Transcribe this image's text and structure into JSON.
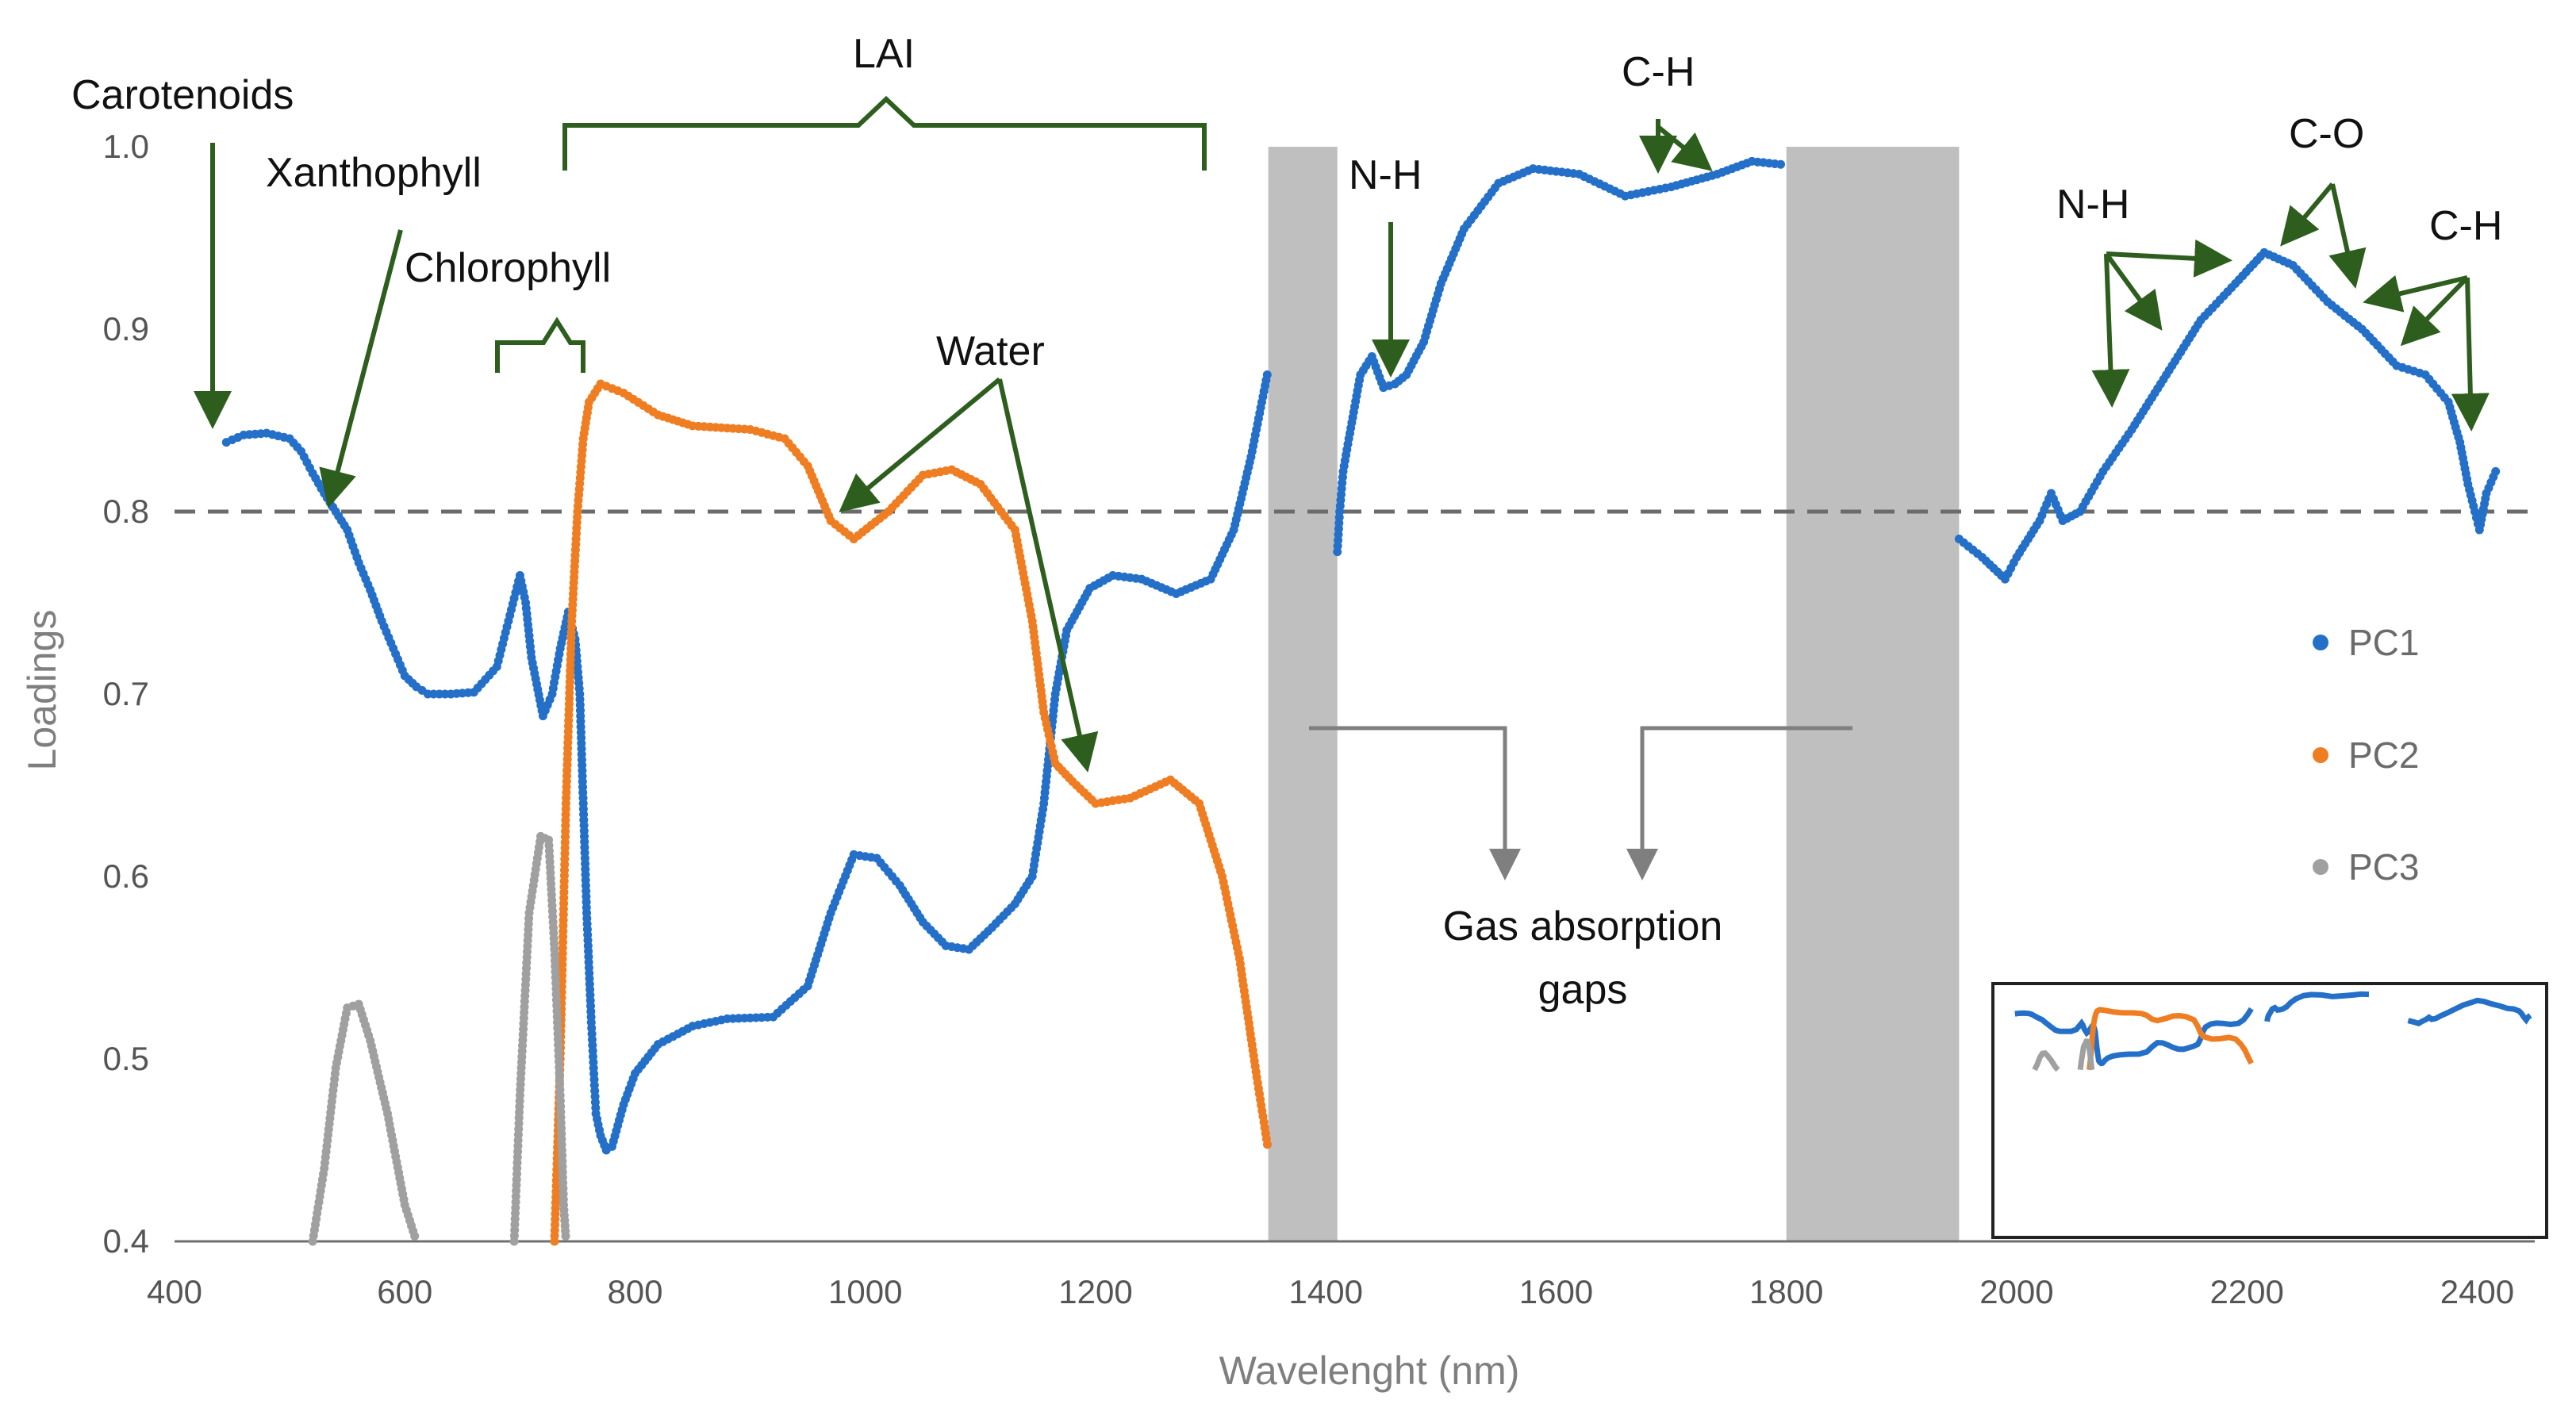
{
  "chart_data": {
    "type": "scatter",
    "title": "",
    "xlabel": "Wavelenght (nm)",
    "ylabel": "Loadings",
    "xlim": [
      400,
      2450
    ],
    "ylim": [
      0.4,
      1.0
    ],
    "xticks": [
      "400",
      "600",
      "800",
      "1000",
      "1200",
      "1400",
      "1600",
      "1800",
      "2000",
      "2200",
      "2400"
    ],
    "yticks": [
      "0.4",
      "0.5",
      "0.6",
      "0.7",
      "0.8",
      "0.9",
      "1.0"
    ],
    "reference_line": 0.8,
    "gas_absorption_gaps": [
      [
        1350,
        1410
      ],
      [
        1800,
        1950
      ]
    ],
    "legend": [
      "PC1",
      "PC2",
      "PC3"
    ],
    "series": [
      {
        "name": "PC1",
        "color": "#2470c8",
        "points": [
          [
            445,
            0.838
          ],
          [
            460,
            0.842
          ],
          [
            480,
            0.843
          ],
          [
            500,
            0.84
          ],
          [
            510,
            0.833
          ],
          [
            520,
            0.821
          ],
          [
            530,
            0.81
          ],
          [
            540,
            0.8
          ],
          [
            550,
            0.79
          ],
          [
            560,
            0.772
          ],
          [
            570,
            0.757
          ],
          [
            580,
            0.74
          ],
          [
            590,
            0.725
          ],
          [
            600,
            0.71
          ],
          [
            610,
            0.704
          ],
          [
            620,
            0.7
          ],
          [
            640,
            0.7
          ],
          [
            660,
            0.701
          ],
          [
            680,
            0.715
          ],
          [
            690,
            0.74
          ],
          [
            700,
            0.765
          ],
          [
            705,
            0.75
          ],
          [
            710,
            0.72
          ],
          [
            720,
            0.688
          ],
          [
            728,
            0.7
          ],
          [
            735,
            0.725
          ],
          [
            742,
            0.745
          ],
          [
            748,
            0.73
          ],
          [
            752,
            0.7
          ],
          [
            755,
            0.64
          ],
          [
            758,
            0.58
          ],
          [
            762,
            0.52
          ],
          [
            766,
            0.47
          ],
          [
            770,
            0.458
          ],
          [
            775,
            0.45
          ],
          [
            780,
            0.452
          ],
          [
            790,
            0.475
          ],
          [
            800,
            0.492
          ],
          [
            820,
            0.508
          ],
          [
            850,
            0.518
          ],
          [
            880,
            0.522
          ],
          [
            920,
            0.523
          ],
          [
            950,
            0.54
          ],
          [
            970,
            0.58
          ],
          [
            990,
            0.612
          ],
          [
            1010,
            0.61
          ],
          [
            1030,
            0.595
          ],
          [
            1050,
            0.575
          ],
          [
            1070,
            0.562
          ],
          [
            1090,
            0.56
          ],
          [
            1110,
            0.572
          ],
          [
            1130,
            0.585
          ],
          [
            1145,
            0.6
          ],
          [
            1155,
            0.64
          ],
          [
            1165,
            0.7
          ],
          [
            1175,
            0.735
          ],
          [
            1195,
            0.758
          ],
          [
            1215,
            0.765
          ],
          [
            1240,
            0.763
          ],
          [
            1270,
            0.755
          ],
          [
            1300,
            0.763
          ],
          [
            1320,
            0.79
          ],
          [
            1335,
            0.83
          ],
          [
            1350,
            0.878
          ],
          [
            1410,
            0.778
          ],
          [
            1412,
            0.8
          ],
          [
            1415,
            0.822
          ],
          [
            1420,
            0.84
          ],
          [
            1430,
            0.875
          ],
          [
            1440,
            0.885
          ],
          [
            1450,
            0.868
          ],
          [
            1460,
            0.87
          ],
          [
            1470,
            0.875
          ],
          [
            1485,
            0.893
          ],
          [
            1500,
            0.925
          ],
          [
            1520,
            0.955
          ],
          [
            1550,
            0.98
          ],
          [
            1580,
            0.988
          ],
          [
            1620,
            0.985
          ],
          [
            1660,
            0.973
          ],
          [
            1700,
            0.978
          ],
          [
            1740,
            0.985
          ],
          [
            1770,
            0.992
          ],
          [
            1800,
            0.99
          ],
          [
            1950,
            0.785
          ],
          [
            1970,
            0.775
          ],
          [
            1990,
            0.763
          ],
          [
            2000,
            0.775
          ],
          [
            2020,
            0.795
          ],
          [
            2030,
            0.81
          ],
          [
            2040,
            0.795
          ],
          [
            2055,
            0.8
          ],
          [
            2075,
            0.822
          ],
          [
            2100,
            0.845
          ],
          [
            2130,
            0.875
          ],
          [
            2160,
            0.905
          ],
          [
            2190,
            0.925
          ],
          [
            2215,
            0.942
          ],
          [
            2240,
            0.935
          ],
          [
            2270,
            0.915
          ],
          [
            2300,
            0.9
          ],
          [
            2330,
            0.88
          ],
          [
            2355,
            0.875
          ],
          [
            2375,
            0.86
          ],
          [
            2385,
            0.838
          ],
          [
            2392,
            0.815
          ],
          [
            2398,
            0.8
          ],
          [
            2402,
            0.79
          ],
          [
            2408,
            0.81
          ],
          [
            2418,
            0.825
          ]
        ]
      },
      {
        "name": "PC2",
        "color": "#ef7d22",
        "points": [
          [
            730,
            0.4
          ],
          [
            735,
            0.5
          ],
          [
            740,
            0.64
          ],
          [
            745,
            0.74
          ],
          [
            750,
            0.8
          ],
          [
            755,
            0.84
          ],
          [
            760,
            0.86
          ],
          [
            770,
            0.87
          ],
          [
            790,
            0.865
          ],
          [
            820,
            0.853
          ],
          [
            850,
            0.847
          ],
          [
            900,
            0.845
          ],
          [
            930,
            0.84
          ],
          [
            950,
            0.825
          ],
          [
            970,
            0.795
          ],
          [
            990,
            0.785
          ],
          [
            1020,
            0.8
          ],
          [
            1050,
            0.82
          ],
          [
            1075,
            0.823
          ],
          [
            1100,
            0.815
          ],
          [
            1130,
            0.79
          ],
          [
            1145,
            0.74
          ],
          [
            1155,
            0.69
          ],
          [
            1165,
            0.662
          ],
          [
            1180,
            0.652
          ],
          [
            1200,
            0.64
          ],
          [
            1230,
            0.643
          ],
          [
            1265,
            0.653
          ],
          [
            1290,
            0.64
          ],
          [
            1310,
            0.6
          ],
          [
            1325,
            0.555
          ],
          [
            1340,
            0.49
          ],
          [
            1350,
            0.45
          ]
        ]
      },
      {
        "name": "PC3",
        "color": "#a0a0a0",
        "points": [
          [
            520,
            0.4
          ],
          [
            530,
            0.44
          ],
          [
            540,
            0.495
          ],
          [
            550,
            0.528
          ],
          [
            560,
            0.53
          ],
          [
            570,
            0.51
          ],
          [
            585,
            0.47
          ],
          [
            600,
            0.42
          ],
          [
            610,
            0.4
          ],
          [
            695,
            0.4
          ],
          [
            700,
            0.48
          ],
          [
            708,
            0.58
          ],
          [
            718,
            0.622
          ],
          [
            725,
            0.62
          ],
          [
            730,
            0.56
          ],
          [
            735,
            0.48
          ],
          [
            738,
            0.42
          ],
          [
            740,
            0.4
          ]
        ]
      }
    ],
    "annotations": [
      "Carotenoids",
      "Xanthophyll",
      "Chlorophyll",
      "LAI",
      "Water",
      "N-H",
      "C-H",
      "C-O",
      "N-H",
      "C-H",
      "Gas absorption",
      "gaps"
    ]
  }
}
